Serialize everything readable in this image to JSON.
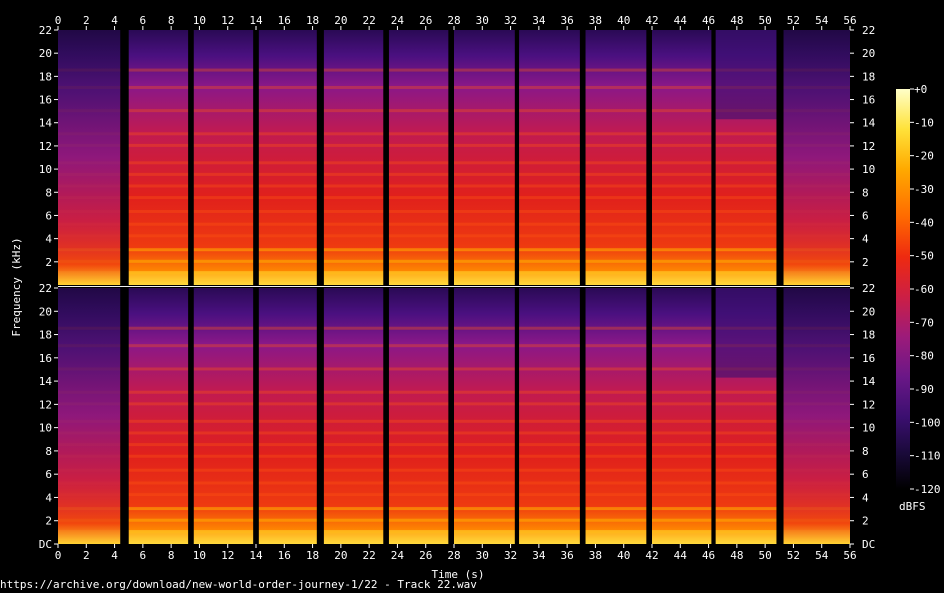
{
  "chart_data": {
    "type": "heatmap",
    "subtype": "spectrogram",
    "channels": 2,
    "xlabel": "Time (s)",
    "ylabel": "Frequency (kHz)",
    "xlim": [
      0,
      56
    ],
    "ylim_khz": [
      0,
      22
    ],
    "x_ticks": [
      0,
      2,
      4,
      6,
      8,
      10,
      12,
      14,
      16,
      18,
      20,
      22,
      24,
      26,
      28,
      30,
      32,
      34,
      36,
      38,
      40,
      42,
      44,
      46,
      48,
      50,
      52,
      54,
      56
    ],
    "y_ticks_top": [
      "2",
      "4",
      "6",
      "8",
      "10",
      "12",
      "14",
      "16",
      "18",
      "20",
      "22"
    ],
    "y_ticks_bottom": [
      "DC",
      "2",
      "4",
      "6",
      "8",
      "10",
      "12",
      "14",
      "16",
      "18",
      "20",
      "22"
    ],
    "silent_gaps_s": [
      [
        4.4,
        5.0
      ],
      [
        9.2,
        9.6
      ],
      [
        13.8,
        14.2
      ],
      [
        18.3,
        18.8
      ],
      [
        23.0,
        23.4
      ],
      [
        27.6,
        28.0
      ],
      [
        32.3,
        32.6
      ],
      [
        36.9,
        37.3
      ],
      [
        41.6,
        42.0
      ],
      [
        46.2,
        46.5
      ],
      [
        50.8,
        51.3
      ]
    ],
    "colorbar": {
      "unit": "dBFS",
      "range": [
        -120,
        0
      ],
      "ticks": [
        "+0",
        "-10",
        "-20",
        "-30",
        "-40",
        "-50",
        "-60",
        "-70",
        "-80",
        "-90",
        "-100",
        "-110",
        "-120"
      ],
      "colormap": [
        "#000000",
        "#1a0a3a",
        "#3b0f70",
        "#6a1787",
        "#9c1b7a",
        "#cc1f45",
        "#ee2a10",
        "#ff6a00",
        "#ffaa00",
        "#ffe23a",
        "#ffffc8"
      ]
    }
  },
  "footer_text": "https://archive.org/download/new-world-order-journey-1/22 - Track 22.wav"
}
